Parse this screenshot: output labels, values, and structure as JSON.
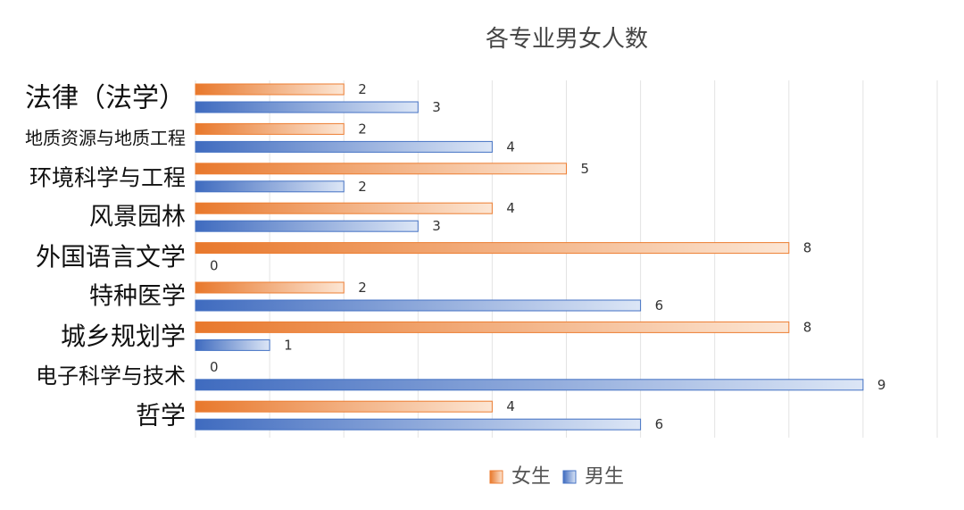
{
  "chart_data": {
    "type": "bar",
    "orientation": "horizontal",
    "title": "各专业男女人数",
    "categories": [
      "法律（法学）",
      "地质资源与地质工程",
      "环境科学与工程",
      "风景园林",
      "外国语言文学",
      "特种医学",
      "城乡规划学",
      "电子科学与技术",
      "哲学"
    ],
    "series": [
      {
        "name": "女生",
        "color": "#ED7D31",
        "values": [
          2,
          2,
          5,
          4,
          8,
          2,
          8,
          0,
          4
        ]
      },
      {
        "name": "男生",
        "color": "#4472C4",
        "values": [
          3,
          4,
          2,
          3,
          0,
          6,
          1,
          9,
          6
        ]
      }
    ],
    "xlim": [
      0,
      10
    ],
    "grid": true,
    "legend_position": "bottom",
    "data_labels": true
  }
}
